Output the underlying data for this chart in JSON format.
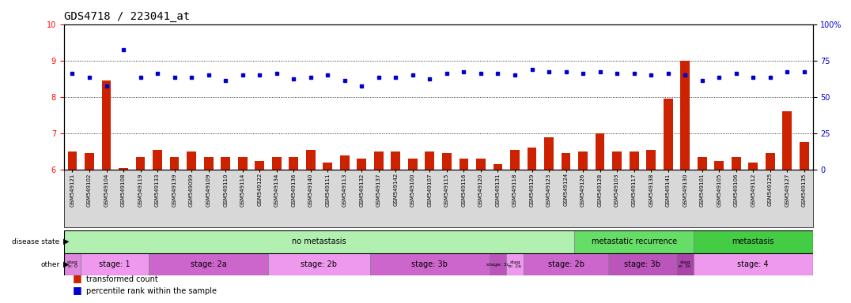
{
  "title": "GDS4718 / 223041_at",
  "samples": [
    "GSM549121",
    "GSM549102",
    "GSM549104",
    "GSM549108",
    "GSM549119",
    "GSM549133",
    "GSM549139",
    "GSM549099",
    "GSM549109",
    "GSM549110",
    "GSM549114",
    "GSM549122",
    "GSM549134",
    "GSM549136",
    "GSM549140",
    "GSM549111",
    "GSM549113",
    "GSM549132",
    "GSM549137",
    "GSM549142",
    "GSM549100",
    "GSM549107",
    "GSM549115",
    "GSM549116",
    "GSM549120",
    "GSM549131",
    "GSM549118",
    "GSM549129",
    "GSM549123",
    "GSM549124",
    "GSM549126",
    "GSM549128",
    "GSM549103",
    "GSM549117",
    "GSM549138",
    "GSM549141",
    "GSM549130",
    "GSM549101",
    "GSM549105",
    "GSM549106",
    "GSM549112",
    "GSM549125",
    "GSM549127",
    "GSM549135"
  ],
  "red_values": [
    6.5,
    6.45,
    8.45,
    6.05,
    6.35,
    6.55,
    6.35,
    6.5,
    6.35,
    6.35,
    6.35,
    6.25,
    6.35,
    6.35,
    6.55,
    6.2,
    6.4,
    6.3,
    6.5,
    6.5,
    6.3,
    6.5,
    6.45,
    6.3,
    6.3,
    6.15,
    6.55,
    6.6,
    6.9,
    6.45,
    6.5,
    7.0,
    6.5,
    6.5,
    6.55,
    7.95,
    9.0,
    6.35,
    6.25,
    6.35,
    6.2,
    6.45,
    7.6,
    6.75
  ],
  "blue_values": [
    8.65,
    8.55,
    8.3,
    9.3,
    8.55,
    8.65,
    8.55,
    8.55,
    8.6,
    8.45,
    8.6,
    8.6,
    8.65,
    8.5,
    8.55,
    8.6,
    8.45,
    8.3,
    8.55,
    8.55,
    8.6,
    8.5,
    8.65,
    8.7,
    8.65,
    8.65,
    8.6,
    8.75,
    8.7,
    8.7,
    8.65,
    8.7,
    8.65,
    8.65,
    8.6,
    8.65,
    8.6,
    8.45,
    8.55,
    8.65,
    8.55,
    8.55,
    8.7,
    8.7
  ],
  "ylim_left": [
    6.0,
    10.0
  ],
  "ylim_right": [
    0,
    100
  ],
  "yticks_left": [
    6,
    7,
    8,
    9,
    10
  ],
  "yticks_right": [
    0,
    25,
    50,
    75,
    100
  ],
  "disease_state_groups": [
    {
      "label": "no metastasis",
      "start": 0,
      "end": 30,
      "color": "#b2f0b2"
    },
    {
      "label": "metastatic recurrence",
      "start": 30,
      "end": 37,
      "color": "#66dd66"
    },
    {
      "label": "metastasis",
      "start": 37,
      "end": 44,
      "color": "#44cc44"
    }
  ],
  "other_groups": [
    {
      "label": "stag\ne: 0",
      "start": 0,
      "end": 1,
      "color": "#dd88dd"
    },
    {
      "label": "stage: 1",
      "start": 1,
      "end": 5,
      "color": "#ee99ee"
    },
    {
      "label": "stage: 2a",
      "start": 5,
      "end": 12,
      "color": "#cc66cc"
    },
    {
      "label": "stage: 2b",
      "start": 12,
      "end": 18,
      "color": "#ee99ee"
    },
    {
      "label": "stage: 3b",
      "start": 18,
      "end": 25,
      "color": "#cc66cc"
    },
    {
      "label": "stage: 3c",
      "start": 25,
      "end": 26,
      "color": "#bb55bb"
    },
    {
      "label": "stag\ne: 2a",
      "start": 26,
      "end": 27,
      "color": "#ee99ee"
    },
    {
      "label": "stage: 2b",
      "start": 27,
      "end": 32,
      "color": "#cc66cc"
    },
    {
      "label": "stage: 3b",
      "start": 32,
      "end": 36,
      "color": "#bb55bb"
    },
    {
      "label": "stag\ne: 3c",
      "start": 36,
      "end": 37,
      "color": "#aa44aa"
    },
    {
      "label": "stage: 4",
      "start": 37,
      "end": 44,
      "color": "#ee99ee"
    }
  ],
  "bar_color": "#CC2200",
  "dot_color": "#0000CC",
  "plot_bg": "#ffffff",
  "tick_area_bg": "#d8d8d8",
  "title_fontsize": 10,
  "axis_fontsize": 7,
  "sample_fontsize": 5,
  "annot_fontsize": 7
}
